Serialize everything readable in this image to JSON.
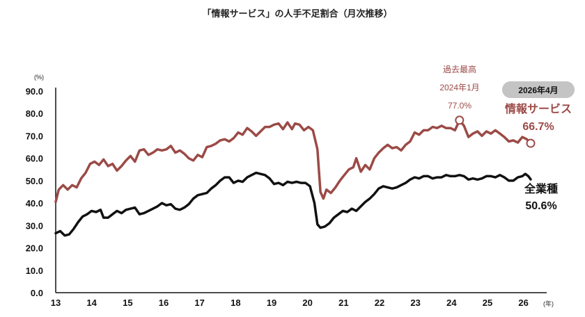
{
  "chart_data": {
    "type": "line",
    "title": "「情報サービス」の人手不足割合（月次推移）",
    "y_unit": "(%)",
    "x_unit": "(年)",
    "ylim": [
      0,
      90
    ],
    "y_ticks": [
      "0.0",
      "10.0",
      "20.0",
      "30.0",
      "40.0",
      "50.0",
      "60.0",
      "70.0",
      "80.0",
      "90.0"
    ],
    "x_ticks": [
      "13",
      "14",
      "15",
      "16",
      "17",
      "18",
      "19",
      "20",
      "21",
      "22",
      "23",
      "24",
      "25",
      "26"
    ],
    "grid": false,
    "series": [
      {
        "name": "情報サービス",
        "color": "#9b4a46",
        "points": [
          [
            13.0,
            40.5
          ],
          [
            13.1,
            46.0
          ],
          [
            13.25,
            48.0
          ],
          [
            13.4,
            46.0
          ],
          [
            13.55,
            48.0
          ],
          [
            13.7,
            47.0
          ],
          [
            13.85,
            51.0
          ],
          [
            14.0,
            53.5
          ],
          [
            14.15,
            57.5
          ],
          [
            14.3,
            58.5
          ],
          [
            14.45,
            57.0
          ],
          [
            14.6,
            59.5
          ],
          [
            14.75,
            56.5
          ],
          [
            14.9,
            57.5
          ],
          [
            15.05,
            54.5
          ],
          [
            15.2,
            56.5
          ],
          [
            15.35,
            59.0
          ],
          [
            15.5,
            61.0
          ],
          [
            15.65,
            58.5
          ],
          [
            15.8,
            63.5
          ],
          [
            15.95,
            64.0
          ],
          [
            16.1,
            61.5
          ],
          [
            16.25,
            62.5
          ],
          [
            16.4,
            64.0
          ],
          [
            16.55,
            63.5
          ],
          [
            16.7,
            64.0
          ],
          [
            16.85,
            65.5
          ],
          [
            17.0,
            62.5
          ],
          [
            17.15,
            63.5
          ],
          [
            17.3,
            62.0
          ],
          [
            17.45,
            60.0
          ],
          [
            17.6,
            59.0
          ],
          [
            17.75,
            61.5
          ],
          [
            17.9,
            60.5
          ],
          [
            18.05,
            65.0
          ],
          [
            18.2,
            65.5
          ],
          [
            18.35,
            66.5
          ],
          [
            18.5,
            68.0
          ],
          [
            18.65,
            68.5
          ],
          [
            18.8,
            67.5
          ],
          [
            18.95,
            69.0
          ],
          [
            19.1,
            71.5
          ],
          [
            19.25,
            70.5
          ],
          [
            19.4,
            73.5
          ],
          [
            19.55,
            72.0
          ],
          [
            19.7,
            70.0
          ],
          [
            19.85,
            72.0
          ],
          [
            20.0,
            74.0
          ],
          [
            20.15,
            74.0
          ],
          [
            20.3,
            75.0
          ],
          [
            20.45,
            75.5
          ],
          [
            20.6,
            73.0
          ],
          [
            20.75,
            76.0
          ],
          [
            20.9,
            73.0
          ],
          [
            21.0,
            75.5
          ],
          [
            21.15,
            75.0
          ],
          [
            21.3,
            72.5
          ],
          [
            21.45,
            74.0
          ],
          [
            21.6,
            72.5
          ],
          [
            21.75,
            64.0
          ],
          [
            21.85,
            45.0
          ],
          [
            21.95,
            42.0
          ],
          [
            22.05,
            46.0
          ],
          [
            22.2,
            44.5
          ],
          [
            22.35,
            47.0
          ],
          [
            22.5,
            50.0
          ],
          [
            22.65,
            52.5
          ],
          [
            22.8,
            55.0
          ],
          [
            22.95,
            56.0
          ],
          [
            23.05,
            60.0
          ],
          [
            23.2,
            54.0
          ],
          [
            23.35,
            57.0
          ],
          [
            23.5,
            55.0
          ],
          [
            23.65,
            60.0
          ],
          [
            23.8,
            62.5
          ],
          [
            23.95,
            64.5
          ],
          [
            24.1,
            66.0
          ],
          [
            24.25,
            64.5
          ],
          [
            24.4,
            65.0
          ],
          [
            24.55,
            63.5
          ],
          [
            24.7,
            66.0
          ],
          [
            24.85,
            67.5
          ],
          [
            25.0,
            71.5
          ],
          [
            25.15,
            70.5
          ],
          [
            25.3,
            72.5
          ],
          [
            25.45,
            72.5
          ],
          [
            25.6,
            74.0
          ],
          [
            25.75,
            73.5
          ],
          [
            25.9,
            74.5
          ],
          [
            26.05,
            73.5
          ],
          [
            26.2,
            73.5
          ],
          [
            26.35,
            72.5
          ],
          [
            26.5,
            77.0
          ],
          [
            26.65,
            74.5
          ],
          [
            26.8,
            69.5
          ],
          [
            26.95,
            71.0
          ],
          [
            27.1,
            72.0
          ],
          [
            27.25,
            70.0
          ],
          [
            27.4,
            72.0
          ],
          [
            27.55,
            71.0
          ],
          [
            27.7,
            72.5
          ],
          [
            27.85,
            71.0
          ],
          [
            28.0,
            69.5
          ],
          [
            28.15,
            67.5
          ],
          [
            28.3,
            68.0
          ],
          [
            28.45,
            67.0
          ],
          [
            28.6,
            69.5
          ],
          [
            28.75,
            68.5
          ],
          [
            28.88,
            66.7
          ]
        ]
      },
      {
        "name": "全業種",
        "color": "#111111",
        "points": [
          [
            13.0,
            26.5
          ],
          [
            13.15,
            27.5
          ],
          [
            13.3,
            25.5
          ],
          [
            13.45,
            26.0
          ],
          [
            13.6,
            28.5
          ],
          [
            13.75,
            31.5
          ],
          [
            13.9,
            34.0
          ],
          [
            14.05,
            35.0
          ],
          [
            14.2,
            36.5
          ],
          [
            14.35,
            36.0
          ],
          [
            14.5,
            37.0
          ],
          [
            14.6,
            33.5
          ],
          [
            14.75,
            33.5
          ],
          [
            14.9,
            35.0
          ],
          [
            15.05,
            36.5
          ],
          [
            15.2,
            35.5
          ],
          [
            15.35,
            37.0
          ],
          [
            15.5,
            37.5
          ],
          [
            15.65,
            38.0
          ],
          [
            15.8,
            35.0
          ],
          [
            15.95,
            35.5
          ],
          [
            16.1,
            36.5
          ],
          [
            16.25,
            37.5
          ],
          [
            16.4,
            38.5
          ],
          [
            16.55,
            40.0
          ],
          [
            16.7,
            39.0
          ],
          [
            16.85,
            39.5
          ],
          [
            17.0,
            37.5
          ],
          [
            17.15,
            37.0
          ],
          [
            17.3,
            38.0
          ],
          [
            17.45,
            39.5
          ],
          [
            17.6,
            42.0
          ],
          [
            17.75,
            43.5
          ],
          [
            17.9,
            44.0
          ],
          [
            18.05,
            44.5
          ],
          [
            18.2,
            46.5
          ],
          [
            18.35,
            48.0
          ],
          [
            18.5,
            50.0
          ],
          [
            18.65,
            51.5
          ],
          [
            18.8,
            51.5
          ],
          [
            18.95,
            49.0
          ],
          [
            19.1,
            50.0
          ],
          [
            19.25,
            49.5
          ],
          [
            19.4,
            51.5
          ],
          [
            19.55,
            52.5
          ],
          [
            19.7,
            53.5
          ],
          [
            19.85,
            53.0
          ],
          [
            20.0,
            52.5
          ],
          [
            20.15,
            51.0
          ],
          [
            20.3,
            48.5
          ],
          [
            20.45,
            49.0
          ],
          [
            20.6,
            48.0
          ],
          [
            20.75,
            49.5
          ],
          [
            20.9,
            49.0
          ],
          [
            21.05,
            49.5
          ],
          [
            21.2,
            49.0
          ],
          [
            21.35,
            49.0
          ],
          [
            21.5,
            47.5
          ],
          [
            21.65,
            40.0
          ],
          [
            21.75,
            30.5
          ],
          [
            21.85,
            29.0
          ],
          [
            22.0,
            29.5
          ],
          [
            22.15,
            31.0
          ],
          [
            22.3,
            33.5
          ],
          [
            22.45,
            35.0
          ],
          [
            22.6,
            36.5
          ],
          [
            22.75,
            36.0
          ],
          [
            22.9,
            37.5
          ],
          [
            23.05,
            36.5
          ],
          [
            23.2,
            38.5
          ],
          [
            23.35,
            40.5
          ],
          [
            23.5,
            42.0
          ],
          [
            23.65,
            44.0
          ],
          [
            23.8,
            46.5
          ],
          [
            23.95,
            47.5
          ],
          [
            24.1,
            47.0
          ],
          [
            24.25,
            46.5
          ],
          [
            24.4,
            47.0
          ],
          [
            24.55,
            48.0
          ],
          [
            24.7,
            49.0
          ],
          [
            24.85,
            50.5
          ],
          [
            25.0,
            51.5
          ],
          [
            25.15,
            51.0
          ],
          [
            25.3,
            52.0
          ],
          [
            25.45,
            52.0
          ],
          [
            25.6,
            51.0
          ],
          [
            25.75,
            51.5
          ],
          [
            25.9,
            51.5
          ],
          [
            26.05,
            52.5
          ],
          [
            26.2,
            52.0
          ],
          [
            26.35,
            52.0
          ],
          [
            26.5,
            52.5
          ],
          [
            26.65,
            52.0
          ],
          [
            26.8,
            50.5
          ],
          [
            26.95,
            51.0
          ],
          [
            27.1,
            50.5
          ],
          [
            27.25,
            51.0
          ],
          [
            27.4,
            52.0
          ],
          [
            27.55,
            52.0
          ],
          [
            27.7,
            51.5
          ],
          [
            27.85,
            52.5
          ],
          [
            28.0,
            51.5
          ],
          [
            28.15,
            50.0
          ],
          [
            28.3,
            50.0
          ],
          [
            28.45,
            51.5
          ],
          [
            28.6,
            52.0
          ],
          [
            28.7,
            53.0
          ],
          [
            28.8,
            52.0
          ],
          [
            28.88,
            50.6
          ]
        ]
      }
    ],
    "peak_annotation": {
      "line1": "過去最高",
      "line2": "2024年1月",
      "line3": "77.0%",
      "x": 26.5,
      "y": 77.0
    },
    "latest_badge": "2026年4月",
    "labels": {
      "red_name": "情報サービス",
      "red_value": "66.7%",
      "black_name": "全業種",
      "black_value": "50.6%"
    }
  }
}
